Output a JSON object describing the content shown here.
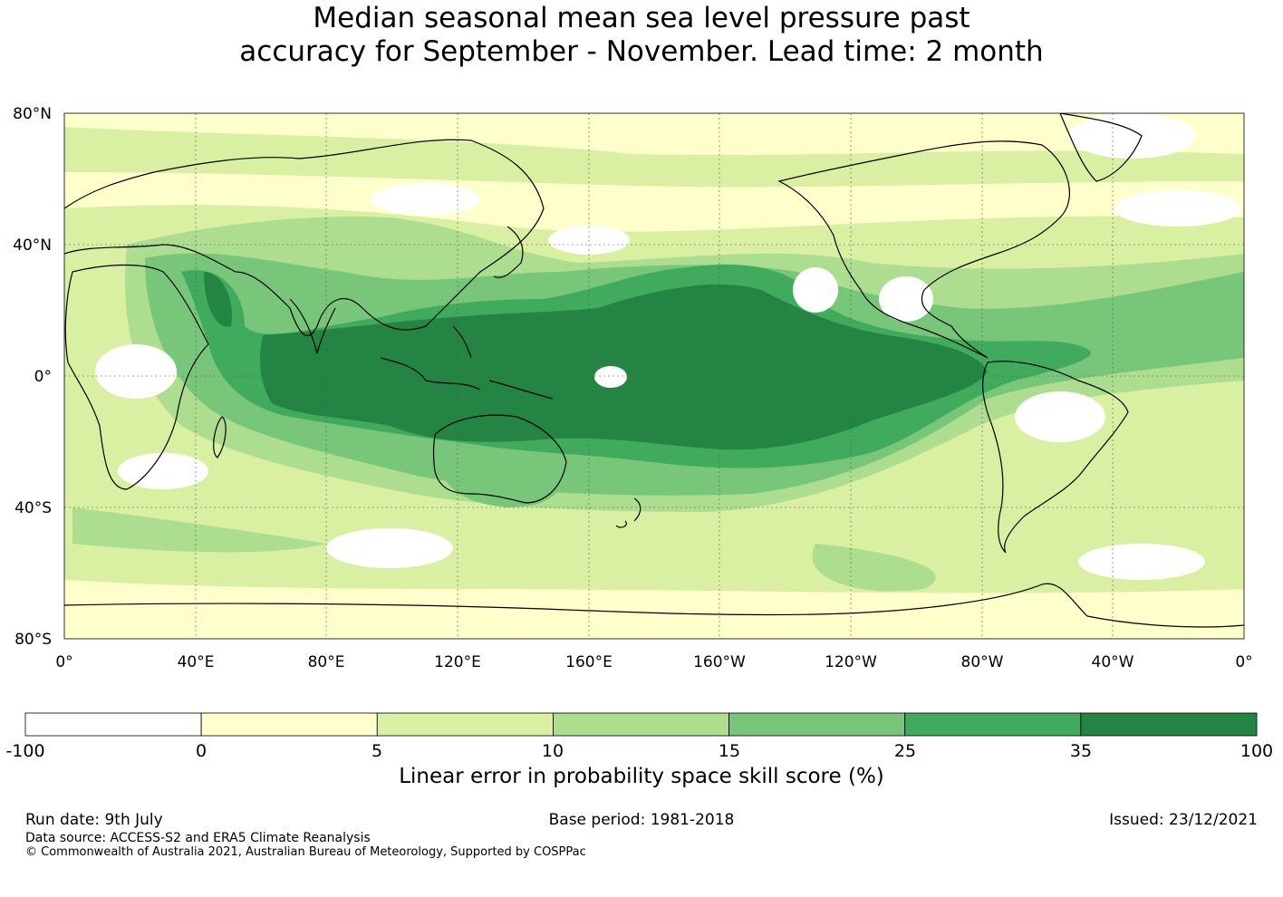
{
  "title": {
    "line1": "Median seasonal mean sea level pressure past",
    "line2": "accuracy for September - November. Lead time: 2 month"
  },
  "map": {
    "lat_labels": [
      "80°N",
      "40°N",
      "0°",
      "40°S",
      "80°S"
    ],
    "lon_labels": [
      "0°",
      "40°E",
      "80°E",
      "120°E",
      "160°E",
      "160°W",
      "120°W",
      "80°W",
      "40°W",
      "0°"
    ]
  },
  "colorbar": {
    "ticks": [
      "-100",
      "0",
      "5",
      "10",
      "15",
      "25",
      "35",
      "100"
    ],
    "colors": [
      "#ffffff",
      "#ffffcc",
      "#d9f0a3",
      "#addd8e",
      "#78c679",
      "#41ab5d",
      "#238443"
    ],
    "label": "Linear error in probability space skill score (%)"
  },
  "footer": {
    "run_date": "Run date: 9th July",
    "base_period": "Base period: 1981-2018",
    "issued": "Issued: 23/12/2021",
    "data_source": "Data source: ACCESS-S2 and ERA5 Climate Reanalysis",
    "copyright": "© Commonwealth of Australia 2021, Australian Bureau of Meteorology, Supported by COSPPac"
  }
}
